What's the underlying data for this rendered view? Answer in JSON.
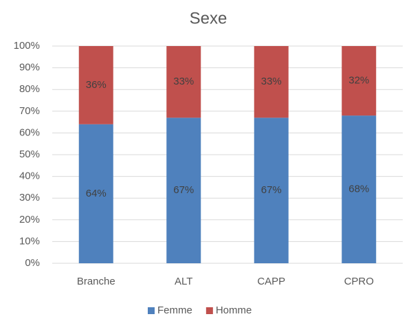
{
  "chart_data": {
    "type": "stacked_bar",
    "title": "Sexe",
    "categories": [
      "Branche",
      "ALT",
      "CAPP",
      "CPRO"
    ],
    "series": [
      {
        "name": "Femme",
        "color": "#4f81bd",
        "values": [
          64,
          67,
          67,
          68
        ],
        "value_labels": [
          "64%",
          "67%",
          "67%",
          "68%"
        ]
      },
      {
        "name": "Homme",
        "color": "#c0504d",
        "values": [
          36,
          33,
          33,
          32
        ],
        "value_labels": [
          "36%",
          "33%",
          "33%",
          "32%"
        ]
      }
    ],
    "ylim": [
      0,
      100
    ],
    "yticks": [
      {
        "value": 0,
        "label": "0%"
      },
      {
        "value": 10,
        "label": "10%"
      },
      {
        "value": 20,
        "label": "20%"
      },
      {
        "value": 30,
        "label": "30%"
      },
      {
        "value": 40,
        "label": "40%"
      },
      {
        "value": 50,
        "label": "50%"
      },
      {
        "value": 60,
        "label": "60%"
      },
      {
        "value": 70,
        "label": "70%"
      },
      {
        "value": 80,
        "label": "80%"
      },
      {
        "value": 90,
        "label": "90%"
      },
      {
        "value": 100,
        "label": "100%"
      }
    ],
    "grid": true,
    "legend": "bottom"
  }
}
